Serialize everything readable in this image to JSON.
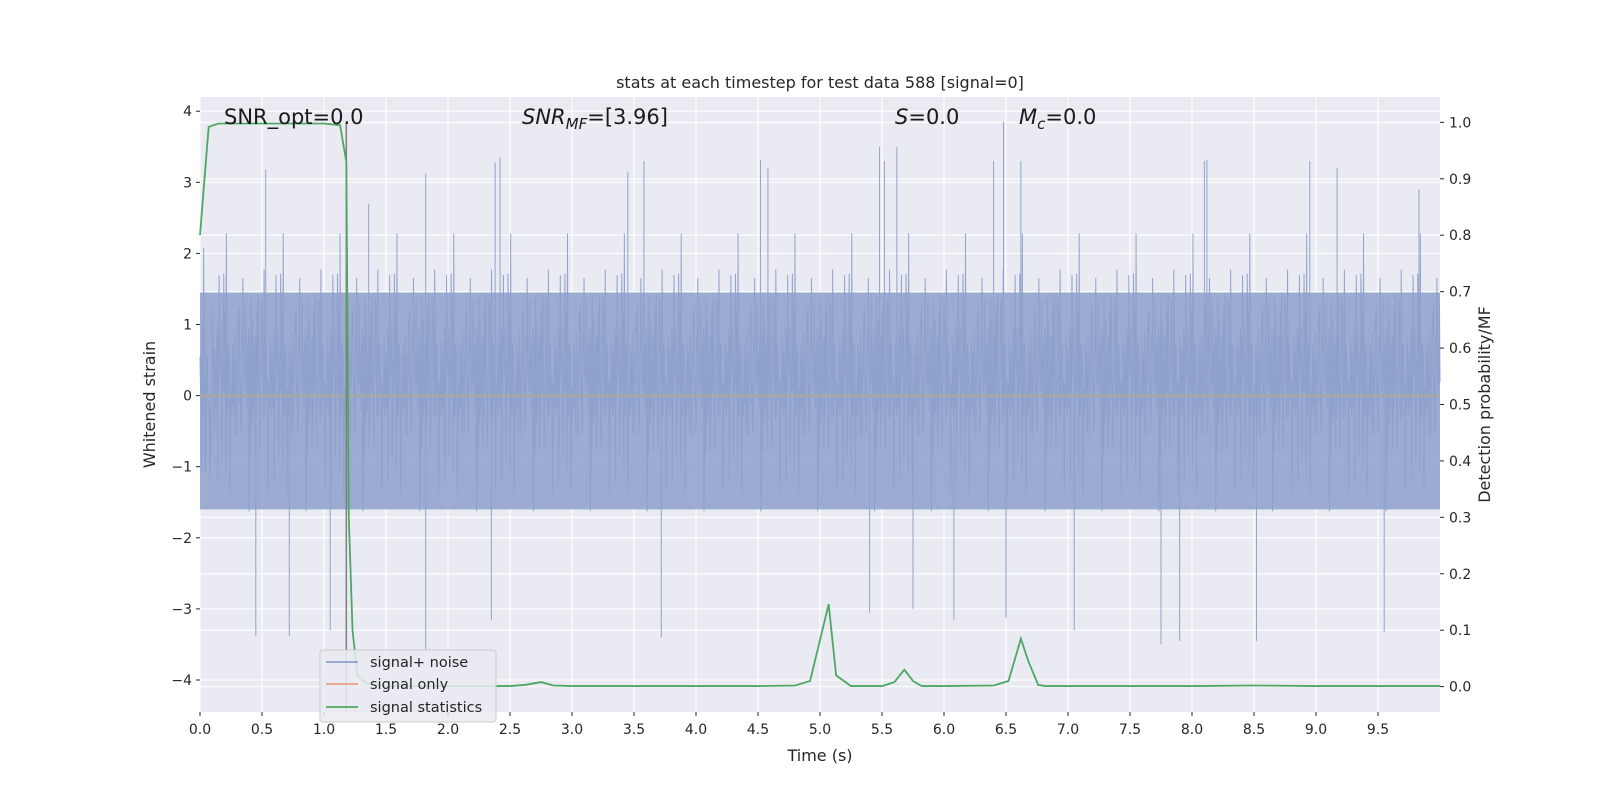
{
  "chart_data": {
    "type": "line",
    "title": "stats at each timestep for test data 588 [signal=0]",
    "xlabel": "Time (s)",
    "ylabel": "Whitened strain",
    "y2label": "Detection probability/MF",
    "xlim": [
      0.0,
      10.0
    ],
    "ylim": [
      -4.45,
      4.2
    ],
    "y2lim": [
      -0.045,
      1.045
    ],
    "xticks": [
      0.0,
      0.5,
      1.0,
      1.5,
      2.0,
      2.5,
      3.0,
      3.5,
      4.0,
      4.5,
      5.0,
      5.5,
      6.0,
      6.5,
      7.0,
      7.5,
      8.0,
      8.5,
      9.0,
      9.5
    ],
    "xtick_labels": [
      "0.0",
      "0.5",
      "1.0",
      "1.5",
      "2.0",
      "2.5",
      "3.0",
      "3.5",
      "4.0",
      "4.5",
      "5.0",
      "5.5",
      "6.0",
      "6.5",
      "7.0",
      "7.5",
      "8.0",
      "8.5",
      "9.0",
      "9.5"
    ],
    "yticks": [
      4,
      3,
      2,
      1,
      0,
      -1,
      -2,
      -3,
      -4
    ],
    "ytick_labels": [
      "4",
      "3",
      "2",
      "1",
      "0",
      "−1",
      "−2",
      "−3",
      "−4"
    ],
    "y2ticks": [
      1.0,
      0.9,
      0.8,
      0.7,
      0.6,
      0.5,
      0.4,
      0.3,
      0.2,
      0.1,
      0.0
    ],
    "y2tick_labels": [
      "1.0",
      "0.9",
      "0.8",
      "0.7",
      "0.6",
      "0.5",
      "0.4",
      "0.3",
      "0.2",
      "0.1",
      "0.0"
    ],
    "grid": true,
    "legend_position": "lower-left",
    "annotations": {
      "snr_opt": "SNR_opt=0.0",
      "snr_mf_sym": "SNR",
      "snr_mf_sub": "MF",
      "snr_mf_val": "=[3.96]",
      "s_sym": "S",
      "s_val": "=0.0",
      "mc_sym": "M",
      "mc_sub": "c",
      "mc_val": "=0.0"
    },
    "series": [
      {
        "name": "signal+ noise",
        "color": "#8da0cb",
        "kind": "noise",
        "description_values": "whitened noise, roughly within ±2.5 with spikes to ±3.8",
        "spikes": [
          [
            0.53,
            3.18
          ],
          [
            1.36,
            2.7
          ],
          [
            1.82,
            3.12
          ],
          [
            2.38,
            3.28
          ],
          [
            2.42,
            3.35
          ],
          [
            3.45,
            3.15
          ],
          [
            3.58,
            3.3
          ],
          [
            4.52,
            3.32
          ],
          [
            4.58,
            3.2
          ],
          [
            5.52,
            3.3
          ],
          [
            5.62,
            3.5
          ],
          [
            5.48,
            3.5
          ],
          [
            6.4,
            3.3
          ],
          [
            6.48,
            3.85
          ],
          [
            6.62,
            3.3
          ],
          [
            8.1,
            3.3
          ],
          [
            8.12,
            3.32
          ],
          [
            8.95,
            3.3
          ],
          [
            9.17,
            3.2
          ],
          [
            9.83,
            2.9
          ],
          [
            0.45,
            -3.38
          ],
          [
            0.72,
            -3.38
          ],
          [
            1.05,
            -3.3
          ],
          [
            1.82,
            -3.6
          ],
          [
            2.35,
            -3.15
          ],
          [
            3.72,
            -3.4
          ],
          [
            5.4,
            -3.05
          ],
          [
            5.75,
            -3.0
          ],
          [
            6.08,
            -3.15
          ],
          [
            6.5,
            -3.13
          ],
          [
            7.05,
            -3.3
          ],
          [
            7.75,
            -3.5
          ],
          [
            7.9,
            -3.45
          ],
          [
            8.52,
            -3.45
          ],
          [
            9.55,
            -3.32
          ]
        ]
      },
      {
        "name": "signal only",
        "color": "#e8a387",
        "values_note": "zero signal",
        "x": [
          0.0,
          10.0
        ],
        "y": [
          0.0,
          0.0
        ]
      },
      {
        "name": "signal statistics",
        "color": "#4ca862",
        "axis": "right",
        "x": [
          0.0,
          0.07,
          0.15,
          0.3,
          0.5,
          1.0,
          1.13,
          1.18,
          1.2,
          1.23,
          1.27,
          1.35,
          1.5,
          2.0,
          2.5,
          2.62,
          2.75,
          2.85,
          3.0,
          4.0,
          4.5,
          4.8,
          4.92,
          5.07,
          5.13,
          5.25,
          5.5,
          5.6,
          5.68,
          5.75,
          5.82,
          6.0,
          6.4,
          6.52,
          6.62,
          6.68,
          6.76,
          6.82,
          7.0,
          8.0,
          8.5,
          9.0,
          9.5,
          10.0
        ],
        "y": [
          0.8,
          0.992,
          0.998,
          0.998,
          0.998,
          0.998,
          0.995,
          0.93,
          0.3,
          0.1,
          0.02,
          0.005,
          0.001,
          0.001,
          0.001,
          0.003,
          0.008,
          0.002,
          0.001,
          0.001,
          0.001,
          0.002,
          0.01,
          0.146,
          0.02,
          0.001,
          0.001,
          0.008,
          0.03,
          0.01,
          0.001,
          0.001,
          0.002,
          0.01,
          0.085,
          0.045,
          0.003,
          0.001,
          0.001,
          0.001,
          0.002,
          0.001,
          0.001,
          0.001
        ]
      }
    ],
    "vline": {
      "x": 1.18,
      "color": "#7f7f7f"
    }
  }
}
